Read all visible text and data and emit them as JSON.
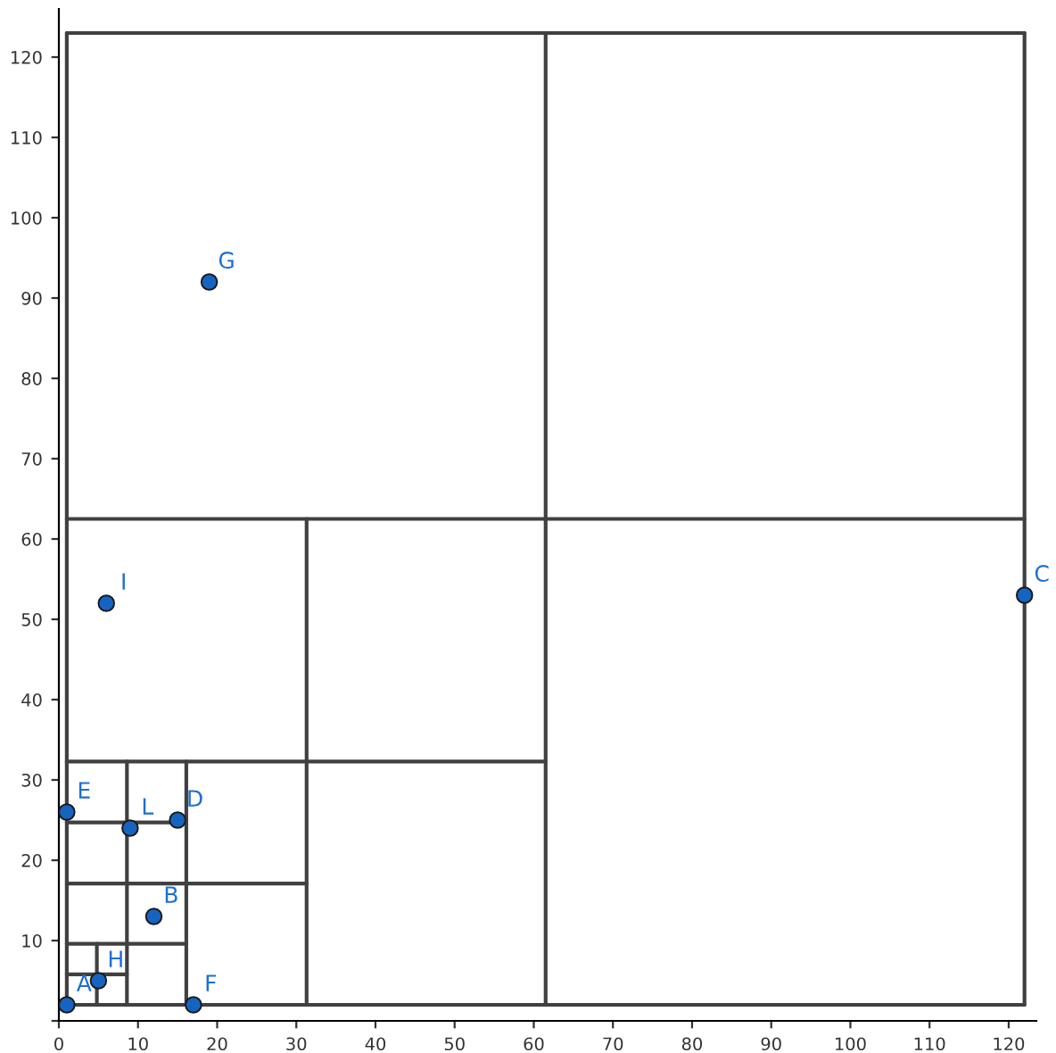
{
  "chart_data": {
    "type": "scatter",
    "xlim": [
      0,
      123.5
    ],
    "ylim": [
      0,
      126
    ],
    "xticks": [
      0,
      10,
      20,
      30,
      40,
      50,
      60,
      70,
      80,
      90,
      100,
      110,
      120
    ],
    "yticks": [
      {
        "value": 0,
        "label": null
      },
      10,
      20,
      30,
      40,
      50,
      60,
      70,
      80,
      90,
      100,
      110,
      120
    ],
    "grid": false,
    "marker": "circle",
    "series": [
      {
        "color": "#1565c0",
        "x": [
          1,
          12,
          122,
          15,
          1,
          17,
          19,
          5,
          6,
          9
        ],
        "values": [
          2,
          13,
          53,
          25,
          26,
          2,
          92,
          5,
          52,
          24
        ]
      },
      {
        "type": "line",
        "marker": "none",
        "color": "#404040",
        "x": [
          1,
          122
        ],
        "values": [
          2,
          2
        ]
      },
      {
        "type": "line",
        "marker": "none",
        "color": "#404040",
        "x": [
          1,
          122
        ],
        "values": [
          123,
          123
        ]
      },
      {
        "type": "line",
        "marker": "none",
        "color": "#404040",
        "x": [
          1,
          1
        ],
        "values": [
          2,
          123
        ]
      },
      {
        "type": "line",
        "marker": "none",
        "color": "#404040",
        "x": [
          122,
          122
        ],
        "values": [
          2,
          123
        ]
      },
      {
        "type": "line",
        "marker": "none",
        "color": "#404040",
        "x": [
          61.5,
          61.5
        ],
        "values": [
          2,
          123
        ]
      },
      {
        "type": "line",
        "marker": "none",
        "color": "#404040",
        "x": [
          1,
          122
        ],
        "values": [
          62.5,
          62.5
        ]
      },
      {
        "type": "line",
        "marker": "none",
        "color": "#404040",
        "x": [
          31.3,
          31.3
        ],
        "values": [
          2,
          62.5
        ]
      },
      {
        "type": "line",
        "marker": "none",
        "color": "#404040",
        "x": [
          1,
          61.5
        ],
        "values": [
          32.3,
          32.3
        ]
      },
      {
        "type": "line",
        "marker": "none",
        "color": "#404040",
        "x": [
          16.1,
          16.1
        ],
        "values": [
          2,
          32.3
        ]
      },
      {
        "type": "line",
        "marker": "none",
        "color": "#404040",
        "x": [
          1,
          31.3
        ],
        "values": [
          17.1,
          17.1
        ]
      },
      {
        "type": "line",
        "marker": "none",
        "color": "#404040",
        "x": [
          8.6,
          8.6
        ],
        "values": [
          2,
          32.3
        ]
      },
      {
        "type": "line",
        "marker": "none",
        "color": "#404040",
        "x": [
          1,
          16.1
        ],
        "values": [
          24.7,
          24.7
        ]
      },
      {
        "type": "line",
        "marker": "none",
        "color": "#404040",
        "x": [
          1,
          16.1
        ],
        "values": [
          9.6,
          9.6
        ]
      },
      {
        "type": "line",
        "marker": "none",
        "color": "#404040",
        "x": [
          4.8,
          4.8
        ],
        "values": [
          2,
          9.6
        ]
      },
      {
        "type": "line",
        "marker": "none",
        "color": "#404040",
        "x": [
          1,
          8.6
        ],
        "values": [
          5.8,
          5.8
        ]
      }
    ],
    "annotations": [
      {
        "text": "A",
        "x": 1,
        "y": 2
      },
      {
        "text": "B",
        "x": 12,
        "y": 13
      },
      {
        "text": "C",
        "x": 122,
        "y": 53
      },
      {
        "text": "D",
        "x": 15,
        "y": 25
      },
      {
        "text": "E",
        "x": 1,
        "y": 26
      },
      {
        "text": "F",
        "x": 17,
        "y": 2
      },
      {
        "text": "G",
        "x": 19,
        "y": 92
      },
      {
        "text": "H",
        "x": 5,
        "y": 5
      },
      {
        "text": "I",
        "x": 6,
        "y": 52
      },
      {
        "text": "L",
        "x": 9,
        "y": 24
      }
    ]
  }
}
